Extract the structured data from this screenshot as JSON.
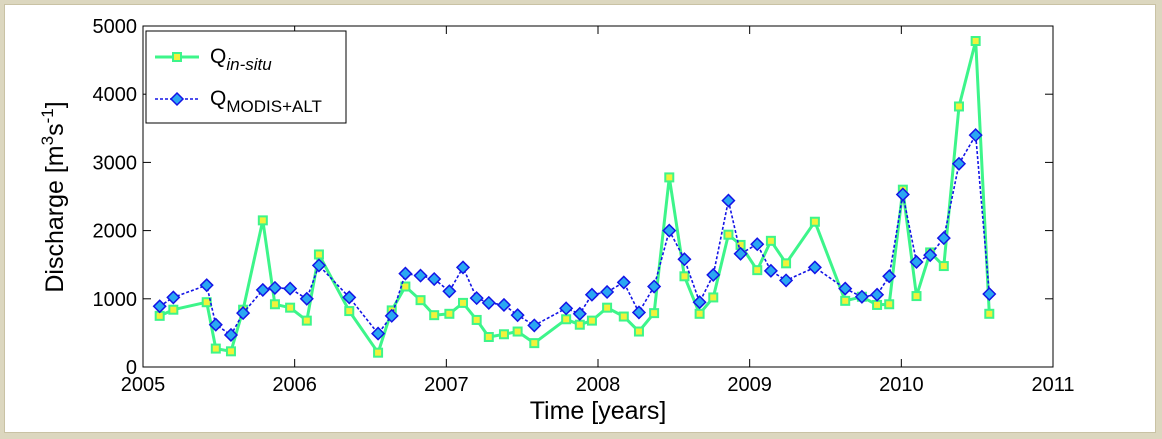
{
  "chart_data": {
    "type": "line",
    "xlabel": "Time [years]",
    "ylabel": {
      "main": "Discharge [m",
      "sup1": "3",
      "mid": "s",
      "sup2": "-1",
      "end": "]"
    },
    "xlim": [
      2005,
      2011
    ],
    "ylim": [
      0,
      5000
    ],
    "xticks": [
      2005,
      2006,
      2007,
      2008,
      2009,
      2010,
      2011
    ],
    "yticks": [
      0,
      1000,
      2000,
      3000,
      4000,
      5000
    ],
    "legend_position": "top-left",
    "series": [
      {
        "name": {
          "base": "Q",
          "sub": "in-situ"
        },
        "style": {
          "color": "#3df58a",
          "marker": "square",
          "marker_fill": "#f2f23a",
          "marker_edge": "#3df58a",
          "linestyle": "solid"
        },
        "points": [
          [
            2005.11,
            750
          ],
          [
            2005.2,
            840
          ],
          [
            2005.42,
            950
          ],
          [
            2005.48,
            270
          ],
          [
            2005.58,
            230
          ],
          [
            2005.66,
            840
          ],
          [
            2005.79,
            2150
          ],
          [
            2005.87,
            920
          ],
          [
            2005.97,
            870
          ],
          [
            2006.08,
            680
          ],
          [
            2006.16,
            1650
          ],
          [
            2006.36,
            820
          ],
          [
            2006.55,
            210
          ],
          [
            2006.64,
            830
          ],
          [
            2006.73,
            1180
          ],
          [
            2006.83,
            980
          ],
          [
            2006.92,
            760
          ],
          [
            2007.02,
            780
          ],
          [
            2007.11,
            940
          ],
          [
            2007.2,
            690
          ],
          [
            2007.28,
            440
          ],
          [
            2007.38,
            480
          ],
          [
            2007.47,
            520
          ],
          [
            2007.58,
            350
          ],
          [
            2007.79,
            700
          ],
          [
            2007.88,
            620
          ],
          [
            2007.96,
            680
          ],
          [
            2008.06,
            870
          ],
          [
            2008.17,
            740
          ],
          [
            2008.27,
            520
          ],
          [
            2008.37,
            790
          ],
          [
            2008.47,
            2780
          ],
          [
            2008.57,
            1330
          ],
          [
            2008.67,
            780
          ],
          [
            2008.76,
            1020
          ],
          [
            2008.86,
            1940
          ],
          [
            2008.94,
            1790
          ],
          [
            2009.05,
            1420
          ],
          [
            2009.14,
            1850
          ],
          [
            2009.24,
            1520
          ],
          [
            2009.43,
            2130
          ],
          [
            2009.63,
            970
          ],
          [
            2009.74,
            1030
          ],
          [
            2009.84,
            910
          ],
          [
            2009.92,
            920
          ],
          [
            2010.01,
            2600
          ],
          [
            2010.1,
            1040
          ],
          [
            2010.19,
            1680
          ],
          [
            2010.28,
            1480
          ],
          [
            2010.38,
            3820
          ],
          [
            2010.49,
            4780
          ],
          [
            2010.58,
            780
          ]
        ]
      },
      {
        "name": {
          "base": "Q",
          "sub": "MODIS+ALT"
        },
        "style": {
          "color": "#1414e6",
          "marker": "diamond",
          "marker_fill": "#2aa7f2",
          "marker_edge": "#1414e6",
          "linestyle": "dashed"
        },
        "points": [
          [
            2005.11,
            890
          ],
          [
            2005.2,
            1020
          ],
          [
            2005.42,
            1200
          ],
          [
            2005.48,
            620
          ],
          [
            2005.58,
            470
          ],
          [
            2005.66,
            790
          ],
          [
            2005.79,
            1130
          ],
          [
            2005.87,
            1160
          ],
          [
            2005.97,
            1150
          ],
          [
            2006.08,
            1000
          ],
          [
            2006.16,
            1490
          ],
          [
            2006.36,
            1020
          ],
          [
            2006.55,
            490
          ],
          [
            2006.64,
            750
          ],
          [
            2006.73,
            1370
          ],
          [
            2006.83,
            1340
          ],
          [
            2006.92,
            1290
          ],
          [
            2007.02,
            1110
          ],
          [
            2007.11,
            1460
          ],
          [
            2007.2,
            1010
          ],
          [
            2007.28,
            940
          ],
          [
            2007.38,
            910
          ],
          [
            2007.47,
            760
          ],
          [
            2007.58,
            610
          ],
          [
            2007.79,
            860
          ],
          [
            2007.88,
            780
          ],
          [
            2007.96,
            1060
          ],
          [
            2008.06,
            1100
          ],
          [
            2008.17,
            1240
          ],
          [
            2008.27,
            800
          ],
          [
            2008.37,
            1180
          ],
          [
            2008.47,
            2000
          ],
          [
            2008.57,
            1580
          ],
          [
            2008.67,
            950
          ],
          [
            2008.76,
            1350
          ],
          [
            2008.86,
            2440
          ],
          [
            2008.94,
            1660
          ],
          [
            2009.05,
            1800
          ],
          [
            2009.14,
            1410
          ],
          [
            2009.24,
            1270
          ],
          [
            2009.43,
            1460
          ],
          [
            2009.63,
            1150
          ],
          [
            2009.74,
            1030
          ],
          [
            2009.84,
            1060
          ],
          [
            2009.92,
            1330
          ],
          [
            2010.01,
            2530
          ],
          [
            2010.1,
            1540
          ],
          [
            2010.19,
            1640
          ],
          [
            2010.28,
            1890
          ],
          [
            2010.38,
            2980
          ],
          [
            2010.49,
            3400
          ],
          [
            2010.58,
            1070
          ]
        ]
      }
    ]
  }
}
